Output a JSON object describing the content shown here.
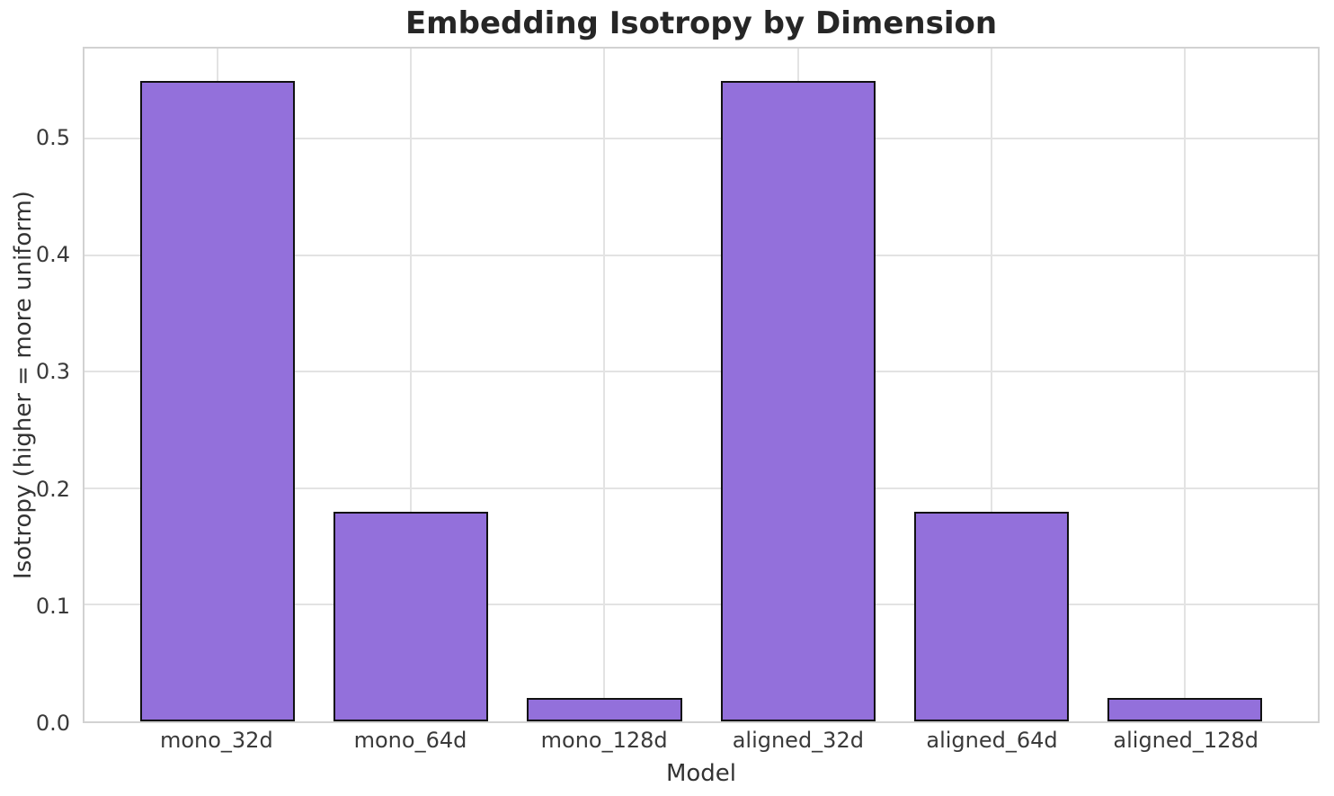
{
  "chart_data": {
    "type": "bar",
    "title": "Embedding Isotropy by Dimension",
    "xlabel": "Model",
    "ylabel": "Isotropy (higher = more uniform)",
    "categories": [
      "mono_32d",
      "mono_64d",
      "mono_128d",
      "aligned_32d",
      "aligned_64d",
      "aligned_128d"
    ],
    "values": [
      0.55,
      0.18,
      0.02,
      0.55,
      0.18,
      0.02
    ],
    "ylim": [
      0,
      0.5775
    ],
    "yticks": [
      0.0,
      0.1,
      0.2,
      0.3,
      0.4,
      0.5
    ],
    "grid": true,
    "legend_position": "none",
    "colors": {
      "bar_fill": "#9370DB",
      "bar_edge": "#111111",
      "grid_line": "#e3e3e3",
      "spine": "#d2d2d2",
      "title_text": "#262626",
      "tick_text": "#3a3a3a",
      "background": "#ffffff"
    }
  }
}
